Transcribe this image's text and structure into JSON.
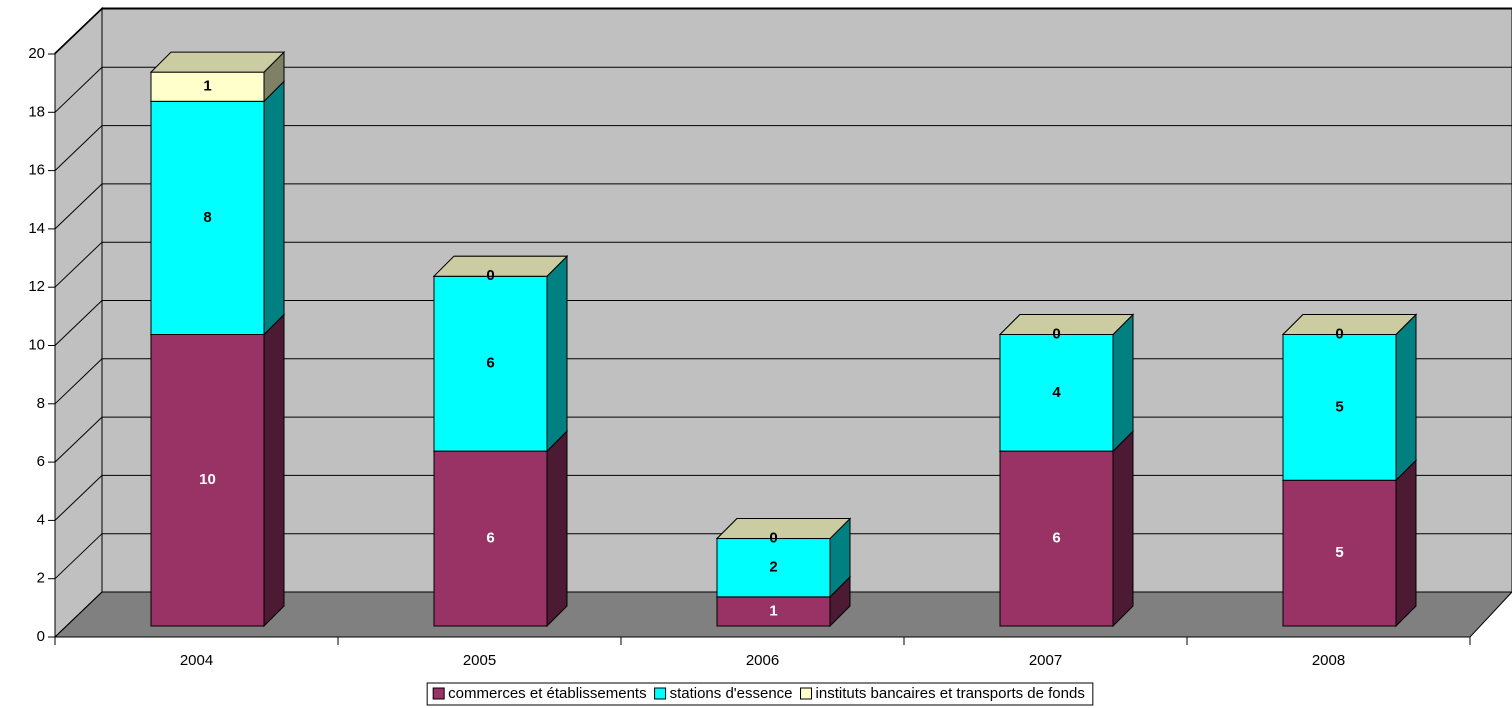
{
  "chart_data": {
    "type": "bar3d_stacked",
    "categories": [
      "2004",
      "2005",
      "2006",
      "2007",
      "2008"
    ],
    "series": [
      {
        "name": "commerces et établissements",
        "color": "#993366",
        "values": [
          10,
          6,
          1,
          6,
          5
        ]
      },
      {
        "name": "stations d'essence",
        "color": "#00ffff",
        "values": [
          8,
          6,
          2,
          4,
          5
        ]
      },
      {
        "name": "instituts bancaires et transports de fonds",
        "color": "#ffffcc",
        "values": [
          1,
          0,
          0,
          0,
          0
        ]
      }
    ],
    "ylim": [
      0,
      20
    ],
    "yticks": [
      0,
      2,
      4,
      6,
      8,
      10,
      12,
      14,
      16,
      18,
      20
    ],
    "grid": true,
    "legend": "bottom"
  }
}
